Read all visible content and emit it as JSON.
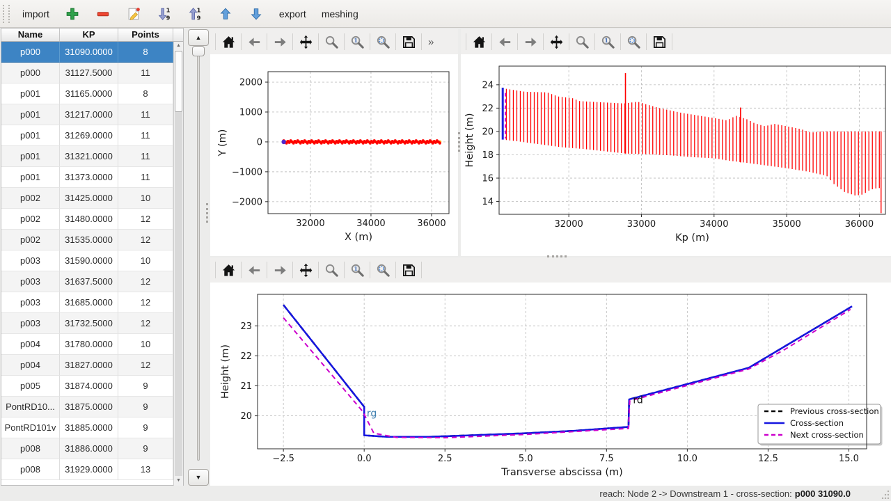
{
  "main_toolbar": {
    "items": [
      {
        "kind": "text",
        "label": "import",
        "name": "import-button"
      },
      {
        "kind": "icon",
        "icon": "add",
        "name": "add-cross-section-button"
      },
      {
        "kind": "icon",
        "icon": "remove",
        "name": "remove-cross-section-button"
      },
      {
        "kind": "icon",
        "icon": "edit",
        "name": "edit-cross-section-button"
      },
      {
        "kind": "icon",
        "icon": "sort-desc",
        "name": "sort-descending-button"
      },
      {
        "kind": "icon",
        "icon": "sort-asc",
        "name": "sort-ascending-button"
      },
      {
        "kind": "icon",
        "icon": "move-up",
        "name": "move-up-button"
      },
      {
        "kind": "icon",
        "icon": "move-down",
        "name": "move-down-button"
      },
      {
        "kind": "text",
        "label": "export",
        "name": "export-button"
      },
      {
        "kind": "text",
        "label": "meshing",
        "name": "meshing-button"
      }
    ]
  },
  "table": {
    "columns": [
      "Name",
      "KP",
      "Points"
    ],
    "selected_row": 0,
    "rows": [
      [
        "p000",
        "31090.0000",
        "8"
      ],
      [
        "p000",
        "31127.5000",
        "11"
      ],
      [
        "p001",
        "31165.0000",
        "8"
      ],
      [
        "p001",
        "31217.0000",
        "11"
      ],
      [
        "p001",
        "31269.0000",
        "11"
      ],
      [
        "p001",
        "31321.0000",
        "11"
      ],
      [
        "p001",
        "31373.0000",
        "11"
      ],
      [
        "p002",
        "31425.0000",
        "10"
      ],
      [
        "p002",
        "31480.0000",
        "12"
      ],
      [
        "p002",
        "31535.0000",
        "12"
      ],
      [
        "p003",
        "31590.0000",
        "10"
      ],
      [
        "p003",
        "31637.5000",
        "12"
      ],
      [
        "p003",
        "31685.0000",
        "12"
      ],
      [
        "p003",
        "31732.5000",
        "12"
      ],
      [
        "p004",
        "31780.0000",
        "10"
      ],
      [
        "p004",
        "31827.0000",
        "12"
      ],
      [
        "p005",
        "31874.0000",
        "9"
      ],
      [
        "PontRD10...",
        "31875.0000",
        "9"
      ],
      [
        "PontRD101v",
        "31885.0000",
        "9"
      ],
      [
        "p008",
        "31886.0000",
        "9"
      ],
      [
        "p008",
        "31929.0000",
        "13"
      ]
    ]
  },
  "plot_toolbar": {
    "buttons": [
      {
        "icon": "home",
        "name": "home-button"
      },
      {
        "icon": "back",
        "name": "back-button"
      },
      {
        "icon": "forward",
        "name": "forward-button"
      },
      {
        "icon": "pan",
        "name": "pan-button"
      },
      {
        "icon": "zoom",
        "name": "zoom-rect-button"
      },
      {
        "icon": "zoom-one",
        "name": "zoom-one-button"
      },
      {
        "icon": "zoom-select",
        "name": "zoom-selection-button"
      },
      {
        "icon": "save",
        "name": "save-figure-button"
      }
    ],
    "overflow": "»"
  },
  "status": {
    "prefix": "reach: Node 2 -> Downstream 1 - cross-section: ",
    "selection": "p000 31090.0"
  },
  "colors": {
    "selection_blue": "#3d84c4",
    "bar_red": "#ff0000",
    "axis_orange": "#ff9913",
    "cross_section_blue": "#1515e0",
    "next_magenta": "#cc00cc",
    "previous_black": "#000000"
  },
  "chart_data": [
    {
      "id": "plan_view",
      "type": "scatter",
      "xlabel": "X (m)",
      "ylabel": "Y (m)",
      "xlim": [
        30600,
        36575
      ],
      "ylim": [
        -2400,
        2350
      ],
      "xticks": [
        32000,
        34000,
        36000
      ],
      "yticks": [
        -2000,
        -1000,
        0,
        1000,
        2000
      ],
      "grid": true,
      "river_axis": {
        "x_start": 31120,
        "x_end": 36280,
        "y": 0,
        "point_spacing": 46,
        "line_color": "#ff9913",
        "point_color": "#ff0000"
      },
      "selected_point": {
        "x": 31120,
        "y": 0,
        "color": "#5227cc"
      }
    },
    {
      "id": "long_profile",
      "type": "bar-range",
      "xlabel": "Kp (m)",
      "ylabel": "Height (m)",
      "xlim": [
        31040,
        36360
      ],
      "ylim": [
        12.9,
        25.6
      ],
      "xticks": [
        32000,
        33000,
        34000,
        35000,
        36000
      ],
      "yticks": [
        14,
        16,
        18,
        20,
        22,
        24
      ],
      "grid": true,
      "bar_color": "#ff0000",
      "bar_spacing": 48,
      "kp_range": [
        31140,
        36290
      ],
      "top_envelope": [
        [
          31090,
          23.7
        ],
        [
          31400,
          23.4
        ],
        [
          31700,
          23.35
        ],
        [
          31850,
          23.0
        ],
        [
          32050,
          22.85
        ],
        [
          32150,
          22.6
        ],
        [
          32450,
          22.5
        ],
        [
          32760,
          22.4
        ],
        [
          32950,
          22.55
        ],
        [
          33080,
          22.3
        ],
        [
          33250,
          22.0
        ],
        [
          33550,
          21.6
        ],
        [
          33850,
          21.3
        ],
        [
          34050,
          21.1
        ],
        [
          34180,
          20.95
        ],
        [
          34300,
          21.35
        ],
        [
          34450,
          21.05
        ],
        [
          34560,
          20.7
        ],
        [
          34700,
          20.45
        ],
        [
          34830,
          20.65
        ],
        [
          35000,
          20.45
        ],
        [
          35200,
          20.2
        ],
        [
          35330,
          19.9
        ],
        [
          35480,
          20.0
        ],
        [
          36290,
          20.0
        ]
      ],
      "bottom_envelope": [
        [
          31090,
          19.3
        ],
        [
          31300,
          19.15
        ],
        [
          31600,
          18.9
        ],
        [
          31900,
          18.65
        ],
        [
          32200,
          18.5
        ],
        [
          32500,
          18.3
        ],
        [
          32800,
          18.1
        ],
        [
          33100,
          18.05
        ],
        [
          33400,
          17.95
        ],
        [
          33700,
          17.8
        ],
        [
          34000,
          17.7
        ],
        [
          34200,
          17.5
        ],
        [
          34400,
          17.35
        ],
        [
          34700,
          17.1
        ],
        [
          35000,
          16.85
        ],
        [
          35300,
          16.55
        ],
        [
          35550,
          16.2
        ],
        [
          35650,
          15.5
        ],
        [
          35800,
          14.8
        ],
        [
          35950,
          14.5
        ],
        [
          36050,
          14.6
        ],
        [
          36150,
          15.0
        ],
        [
          36250,
          15.15
        ]
      ],
      "spike_bars": [
        {
          "kp": 32780,
          "top": 25.0,
          "bottom": 18.1
        },
        {
          "kp": 34365,
          "top": 22.05,
          "bottom": 17.35
        }
      ],
      "last_bar": {
        "kp": 36300,
        "top": 20.0,
        "bottom": 13.0
      },
      "selected_bar": {
        "kp": 31090,
        "bottom": 19.3,
        "top": 23.75,
        "color": "#2222dd"
      },
      "next_bar": {
        "kp": 31127,
        "bottom": 19.4,
        "top": 23.3,
        "color": "#cc00cc"
      }
    },
    {
      "id": "cross_section",
      "type": "line",
      "xlabel": "Transverse abscissa (m)",
      "ylabel": "Height (m)",
      "xlim": [
        -3.3,
        15.55
      ],
      "ylim": [
        18.9,
        24.05
      ],
      "xticks": [
        -2.5,
        0,
        2.5,
        5,
        7.5,
        10,
        12.5,
        15
      ],
      "xtick_labels": [
        "−2.5",
        "0.0",
        "2.5",
        "5.0",
        "7.5",
        "10.0",
        "12.5",
        "15.0"
      ],
      "yticks": [
        20,
        21,
        22,
        23
      ],
      "grid": true,
      "series": [
        {
          "name": "Previous cross-section",
          "color": "#000000",
          "dash": "8,5",
          "width": 2.5,
          "points": [
            [
              -2.5,
              23.7
            ],
            [
              0,
              20.3
            ],
            [
              0,
              19.35
            ],
            [
              0.7,
              19.3
            ],
            [
              2,
              19.3
            ],
            [
              3.5,
              19.36
            ],
            [
              5,
              19.42
            ],
            [
              6.5,
              19.5
            ],
            [
              8.18,
              19.63
            ],
            [
              8.2,
              20.55
            ],
            [
              11.9,
              21.6
            ],
            [
              15.1,
              23.65
            ]
          ]
        },
        {
          "name": "Cross-section",
          "color": "#1515e0",
          "dash": null,
          "width": 2.5,
          "points": [
            [
              -2.5,
              23.7
            ],
            [
              0,
              20.3
            ],
            [
              0,
              19.35
            ],
            [
              0.7,
              19.3
            ],
            [
              2,
              19.3
            ],
            [
              3.5,
              19.36
            ],
            [
              5,
              19.42
            ],
            [
              6.5,
              19.5
            ],
            [
              8.18,
              19.63
            ],
            [
              8.2,
              20.55
            ],
            [
              11.9,
              21.6
            ],
            [
              15.1,
              23.65
            ]
          ]
        },
        {
          "name": "Next cross-section",
          "color": "#cc00cc",
          "dash": "7,5",
          "width": 2,
          "points": [
            [
              -2.5,
              23.27
            ],
            [
              -0.05,
              20.15
            ],
            [
              0.3,
              19.42
            ],
            [
              1,
              19.28
            ],
            [
              2.5,
              19.27
            ],
            [
              5,
              19.38
            ],
            [
              8.18,
              19.58
            ],
            [
              8.22,
              20.5
            ],
            [
              11.9,
              21.56
            ],
            [
              13,
              22.2
            ],
            [
              15.05,
              23.55
            ]
          ]
        }
      ],
      "annotations": [
        {
          "text": "rg",
          "x": 0.08,
          "y": 19.98,
          "color": "#4080b0"
        },
        {
          "text": "rd",
          "x": 8.32,
          "y": 20.42,
          "color": "#111111"
        }
      ],
      "legend": {
        "position": "lower-right",
        "entries": [
          {
            "label": "Previous cross-section",
            "color": "#000000",
            "dash": "6,4"
          },
          {
            "label": "Cross-section",
            "color": "#1515e0",
            "dash": null
          },
          {
            "label": "Next cross-section",
            "color": "#cc00cc",
            "dash": "6,4"
          }
        ]
      }
    }
  ]
}
